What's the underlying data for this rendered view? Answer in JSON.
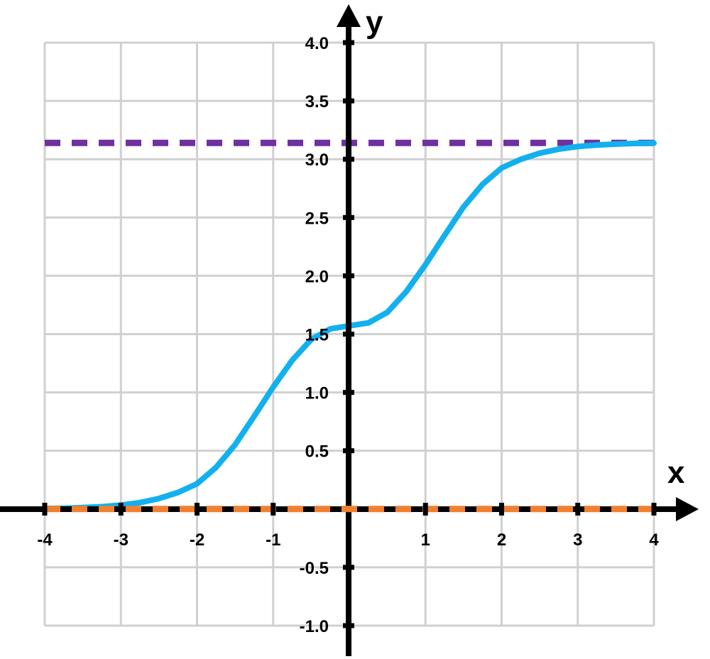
{
  "chart_data": {
    "type": "line",
    "title": "",
    "xlabel": "x",
    "ylabel": "y",
    "xlim": [
      -4,
      4
    ],
    "ylim": [
      -1,
      4
    ],
    "grid": true,
    "legend": "none",
    "x_ticks": [
      -4,
      -3,
      -2,
      -1,
      1,
      2,
      3,
      4
    ],
    "x_tick_labels": [
      "-4",
      "-3",
      "-2",
      "-1",
      "1",
      "2",
      "3",
      "4"
    ],
    "y_ticks": [
      -1.0,
      -0.5,
      0.5,
      1.0,
      1.5,
      2.0,
      2.5,
      3.0,
      3.5,
      4.0
    ],
    "y_tick_labels": [
      "-1.0",
      "-0.5",
      "0.5",
      "1.0",
      "1.5",
      "2.0",
      "2.5",
      "3.0",
      "3.5",
      "4.0"
    ],
    "series": [
      {
        "style": "solid",
        "color": "#12B0EE",
        "x": [
          -4.0,
          -3.75,
          -3.5,
          -3.25,
          -3.0,
          -2.75,
          -2.5,
          -2.25,
          -2.0,
          -1.75,
          -1.5,
          -1.25,
          -1.0,
          -0.75,
          -0.5,
          -0.25,
          0.0,
          0.25,
          0.5,
          0.75,
          1.0,
          1.25,
          1.5,
          1.75,
          2.0,
          2.25,
          2.5,
          2.75,
          3.0,
          3.25,
          3.5,
          3.75,
          4.0
        ],
        "y": [
          0.004,
          0.007,
          0.012,
          0.02,
          0.033,
          0.055,
          0.09,
          0.142,
          0.217,
          0.357,
          0.551,
          0.795,
          1.046,
          1.276,
          1.455,
          1.545,
          1.571,
          1.596,
          1.687,
          1.866,
          2.096,
          2.346,
          2.591,
          2.785,
          2.925,
          2.999,
          3.052,
          3.086,
          3.109,
          3.122,
          3.13,
          3.135,
          3.138
        ]
      },
      {
        "style": "dashed",
        "color": "#7030A0",
        "x": [
          -4,
          4
        ],
        "y": [
          3.14,
          3.14
        ]
      },
      {
        "style": "dashed",
        "color": "#F08030",
        "x": [
          -4,
          4
        ],
        "y": [
          0,
          0
        ]
      }
    ],
    "colors": {
      "grid": "#D0D0D0",
      "axis": "#000000"
    }
  }
}
